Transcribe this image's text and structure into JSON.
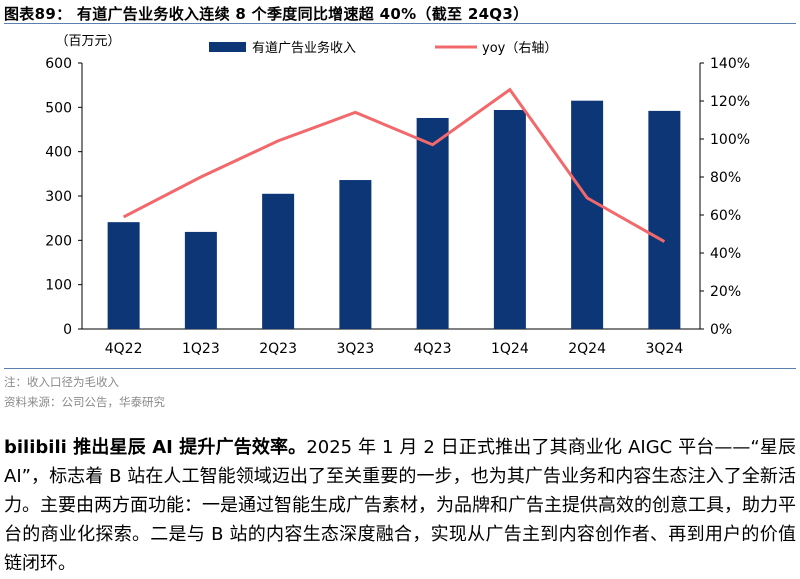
{
  "caption": {
    "title": "图表89：  有道广告业务收入连续 8 个季度同比增速超 40%（截至 24Q3）"
  },
  "chart_data": {
    "type": "bar",
    "categories": [
      "4Q22",
      "1Q23",
      "2Q23",
      "3Q23",
      "4Q23",
      "1Q24",
      "2Q24",
      "3Q24"
    ],
    "series": [
      {
        "name": "有道广告业务收入",
        "type": "bar",
        "axis": "left",
        "color": "#0d3677",
        "values": [
          241,
          219,
          305,
          336,
          476,
          494,
          515,
          492
        ]
      },
      {
        "name": "yoy（右轴）",
        "type": "line",
        "axis": "right",
        "color": "#f2686b",
        "values": [
          59,
          80,
          99,
          114,
          97,
          126,
          69,
          46
        ]
      }
    ],
    "left_axis": {
      "label": "（百万元）",
      "ylim": [
        0,
        600
      ],
      "ticks": [
        "0",
        "100",
        "200",
        "300",
        "400",
        "500",
        "600"
      ]
    },
    "right_axis": {
      "ylim": [
        0,
        140
      ],
      "ticks": [
        "0%",
        "20%",
        "40%",
        "60%",
        "80%",
        "100%",
        "120%",
        "140%"
      ]
    },
    "legend_placement": "top-center",
    "grid": false
  },
  "notes": {
    "note": "注：收入口径为毛收入",
    "source": "资料来源：公司公告，华泰研究"
  },
  "body": {
    "lead": "bilibili 推出星辰 AI  提升广告效率。",
    "text": "2025 年 1 月 2 日正式推出了其商业化 AIGC 平台——“星辰 AI”，标志着 B 站在人工智能领域迈出了至关重要的一步，也为其广告业务和内容生态注入了全新活力。主要由两方面功能：一是通过智能生成广告素材，为品牌和广告主提供高效的创意工具，助力平台的商业化探索。二是与 B 站的内容生态深度融合，实现从广告主到内容创作者、再到用户的价值链闭环。"
  }
}
